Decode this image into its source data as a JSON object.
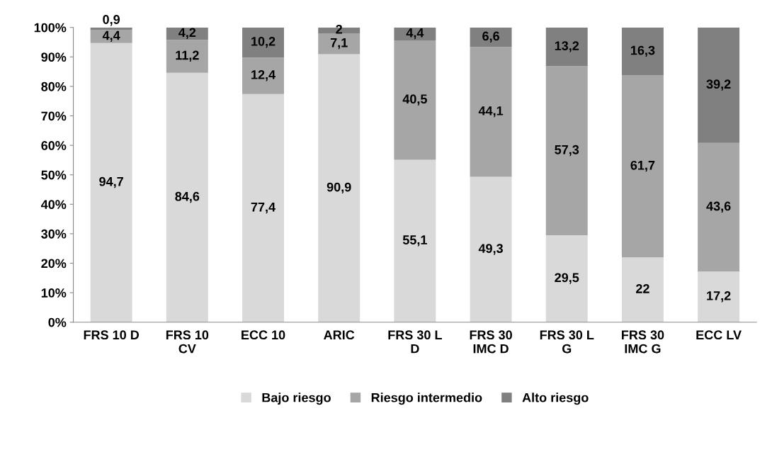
{
  "chart_data": {
    "type": "bar",
    "stacked": true,
    "categories": [
      "FRS 10 D",
      "FRS 10\nCV",
      "ECC 10",
      "ARIC",
      "FRS 30 L\nD",
      "FRS 30\nIMC D",
      "FRS 30 L\nG",
      "FRS 30\nIMC G",
      "ECC LV"
    ],
    "series": [
      {
        "name": "Bajo riesgo",
        "color": "#d9d9d9",
        "values": [
          94.7,
          84.6,
          77.4,
          90.9,
          55.1,
          49.3,
          29.5,
          22,
          17.2
        ],
        "value_labels": [
          "94,7",
          "84,6",
          "77,4",
          "90,9",
          "55,1",
          "49,3",
          "29,5",
          "22",
          "17,2"
        ]
      },
      {
        "name": "Riesgo intermedio",
        "color": "#a6a6a6",
        "values": [
          4.4,
          11.2,
          12.4,
          7.1,
          40.5,
          44.1,
          57.3,
          61.7,
          43.6
        ],
        "value_labels": [
          "4,4",
          "11,2",
          "12,4",
          "7,1",
          "40,5",
          "44,1",
          "57,3",
          "61,7",
          "43,6"
        ]
      },
      {
        "name": "Alto riesgo",
        "color": "#808080",
        "values": [
          0.9,
          4.2,
          10.2,
          2,
          4.4,
          6.6,
          13.2,
          16.3,
          39.2
        ],
        "value_labels": [
          "0,9",
          "4,2",
          "10,2",
          "2",
          "4,4",
          "6,6",
          "13,2",
          "16,3",
          "39,2"
        ]
      }
    ],
    "ylim": [
      0,
      100
    ],
    "yticks": [
      {
        "value": 0,
        "label": "0%"
      },
      {
        "value": 10,
        "label": "10%"
      },
      {
        "value": 20,
        "label": "20%"
      },
      {
        "value": 30,
        "label": "30%"
      },
      {
        "value": 40,
        "label": "40%"
      },
      {
        "value": 50,
        "label": "50%"
      },
      {
        "value": 60,
        "label": "60%"
      },
      {
        "value": 70,
        "label": "70%"
      },
      {
        "value": 80,
        "label": "80%"
      },
      {
        "value": 90,
        "label": "90%"
      },
      {
        "value": 100,
        "label": "100%"
      }
    ],
    "grid": false,
    "legend": "bottom"
  }
}
